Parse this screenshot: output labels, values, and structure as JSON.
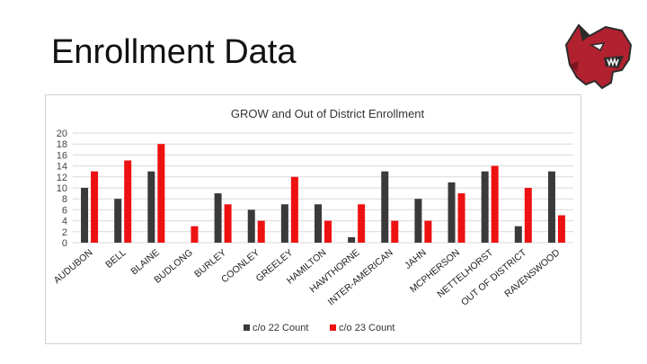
{
  "slide": {
    "title": "Enrollment Data"
  },
  "logo": {
    "icon": "bobcat-mascot-icon",
    "colors": {
      "red": "#b1212f",
      "dark": "#2b2b2b"
    }
  },
  "chart_data": {
    "type": "bar",
    "title": "GROW and Out of District Enrollment",
    "xlabel": "",
    "ylabel": "",
    "ylim": [
      0,
      20
    ],
    "yticks": [
      0,
      2,
      4,
      6,
      8,
      10,
      12,
      14,
      16,
      18,
      20
    ],
    "grid": true,
    "legend_position": "bottom",
    "categories": [
      "AUDUBON",
      "BELL",
      "BLAINE",
      "BUDLONG",
      "BURLEY",
      "COONLEY",
      "GREELEY",
      "HAMILTON",
      "HAWTHORNE",
      "INTER-AMERICAN",
      "JAHN",
      "MCPHERSON",
      "NETTELHORST",
      "OUT OF DISTRICT",
      "RAVENSWOOD"
    ],
    "series": [
      {
        "name": "c/o 22 Count",
        "color": "#3a3a3a",
        "values": [
          10,
          8,
          13,
          0,
          9,
          6,
          7,
          7,
          1,
          13,
          8,
          11,
          13,
          3,
          13
        ]
      },
      {
        "name": "c/o 23 Count",
        "color": "#ee1111",
        "values": [
          13,
          15,
          18,
          3,
          7,
          4,
          12,
          4,
          7,
          4,
          4,
          9,
          14,
          10,
          5
        ]
      }
    ]
  }
}
